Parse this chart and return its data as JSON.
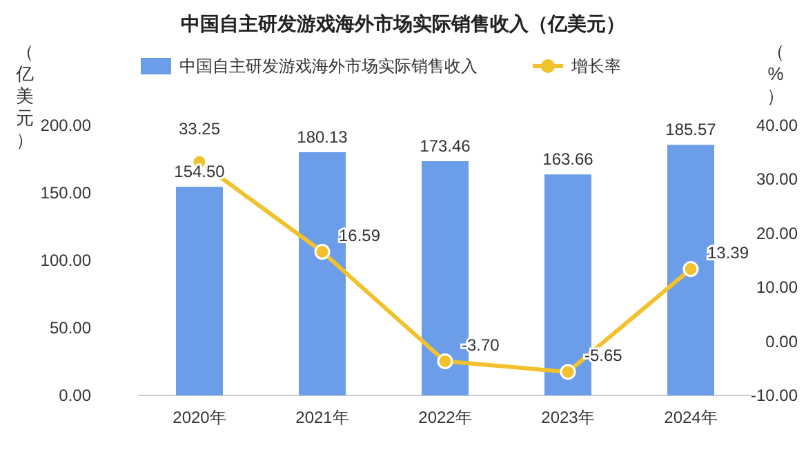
{
  "chart_data": {
    "type": "bar",
    "title": "中国自主研发游戏海外市场实际销售收入（亿美元）",
    "ylabel": "（亿美元）",
    "y2label": "（%）",
    "categories": [
      "2020年",
      "2021年",
      "2022年",
      "2023年",
      "2024年"
    ],
    "series": [
      {
        "name": "中国自主研发游戏海外市场实际销售收入",
        "color": "#6b9de8",
        "values": [
          154.5,
          180.13,
          173.46,
          163.66,
          185.57
        ],
        "value_labels": [
          "154.50",
          "180.13",
          "173.46",
          "163.66",
          "185.57"
        ]
      },
      {
        "name": "增长率",
        "type": "line",
        "axis": "y2",
        "color": "#f2c12e",
        "marker": "circle",
        "values": [
          33.25,
          16.59,
          -3.7,
          -5.65,
          13.39
        ],
        "value_labels": [
          "33.25",
          "16.59",
          "-3.70",
          "-5.65",
          "13.39"
        ]
      }
    ],
    "ylim": [
      0,
      200
    ],
    "yticks": [
      {
        "value": 0,
        "label": "0.00"
      },
      {
        "value": 50,
        "label": "50.00"
      },
      {
        "value": 100,
        "label": "100.00"
      },
      {
        "value": 150,
        "label": "150.00"
      },
      {
        "value": 200,
        "label": "200.00"
      }
    ],
    "y2lim": [
      -10,
      40
    ],
    "y2ticks": [
      {
        "value": -10,
        "label": "-10.00"
      },
      {
        "value": 0,
        "label": "0.00"
      },
      {
        "value": 10,
        "label": "10.00"
      },
      {
        "value": 20,
        "label": "20.00"
      },
      {
        "value": 30,
        "label": "30.00"
      },
      {
        "value": 40,
        "label": "40.00"
      }
    ],
    "legend": "top",
    "grid": false
  }
}
